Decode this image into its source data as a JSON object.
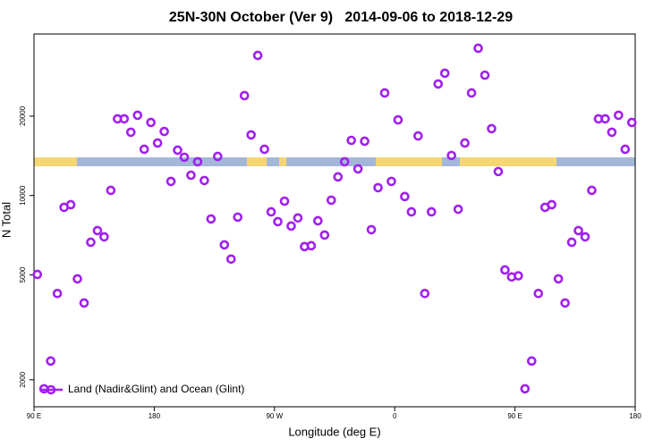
{
  "chart_data": {
    "type": "scatter",
    "title": "25N-30N October (Ver 9)   2014-09-06 to 2018-12-29",
    "xlabel": "Longitude (deg E)",
    "ylabel": "N Total",
    "ylog": true,
    "xlim": [
      90,
      540
    ],
    "xticks": [
      {
        "value": 90,
        "label": "90 E"
      },
      180,
      {
        "value": 270,
        "label": "90 W"
      },
      {
        "value": 360,
        "label": "0"
      },
      {
        "value": 450,
        "label": "90 E"
      },
      {
        "value": 540,
        "label": "180"
      }
    ],
    "ylim": [
      1580,
      41000
    ],
    "yticks": [
      2000,
      5000,
      10000,
      20000
    ],
    "legend": "bottom-left",
    "series": [
      {
        "name": "Land (Nadir&Glint) and Ocean (Glint)",
        "color": "#a020f0",
        "x": [
          92.5,
          97.5,
          102.5,
          107.5,
          112.5,
          117.5,
          122.5,
          127.5,
          132.5,
          137.5,
          142.5,
          147.5,
          152.5,
          157.5,
          162.5,
          167.5,
          172.5,
          177.5,
          182.5,
          187.5,
          192.5,
          197.5,
          202.5,
          207.5,
          212.5,
          217.5,
          222.5,
          227.5,
          232.5,
          237.5,
          242.5,
          247.5,
          252.5,
          257.5,
          262.5,
          267.5,
          272.5,
          277.5,
          282.5,
          287.5,
          292.5,
          297.5,
          302.5,
          307.5,
          312.5,
          317.5,
          322.5,
          327.5,
          332.5,
          337.5,
          342.5,
          347.5,
          352.5,
          357.5,
          362.5,
          367.5,
          372.5,
          377.5,
          382.5,
          387.5,
          392.5,
          397.5,
          402.5,
          407.5,
          412.5,
          417.5,
          422.5,
          427.5,
          432.5,
          437.5,
          442.5,
          447.5,
          452.5,
          457.5,
          462.5,
          467.5,
          472.5,
          477.5,
          482.5,
          487.5,
          492.5,
          497.5,
          502.5,
          507.5,
          512.5,
          517.5,
          522.5,
          527.5,
          532.5,
          537.5
        ],
        "values": [
          5020,
          1849,
          2356,
          4250,
          9020,
          9230,
          4830,
          3912,
          6650,
          7360,
          6970,
          10460,
          19540,
          19540,
          17380,
          20160,
          14980,
          18930,
          15820,
          17500,
          11310,
          14860,
          13970,
          11940,
          13430,
          11400,
          8150,
          14070,
          6500,
          5740,
          8280,
          23930,
          16980,
          34000,
          14980,
          8670,
          7960,
          9520,
          7660,
          8220,
          6400,
          6450,
          8020,
          7080,
          9600,
          11770,
          13430,
          16190,
          12620,
          16070,
          7420,
          10710,
          24500,
          11310,
          19360,
          9910,
          8670,
          16830,
          4250,
          8670,
          26500,
          29100,
          14190,
          8870,
          15820,
          24500,
          36200,
          28600,
          17930,
          12330,
          5220,
          4910,
          4960,
          1849,
          2356,
          4250,
          9020,
          9230,
          4830,
          3912,
          6650,
          7360,
          6970,
          10460,
          19540,
          19540,
          17380,
          20160,
          14980,
          18930
        ]
      }
    ]
  }
}
